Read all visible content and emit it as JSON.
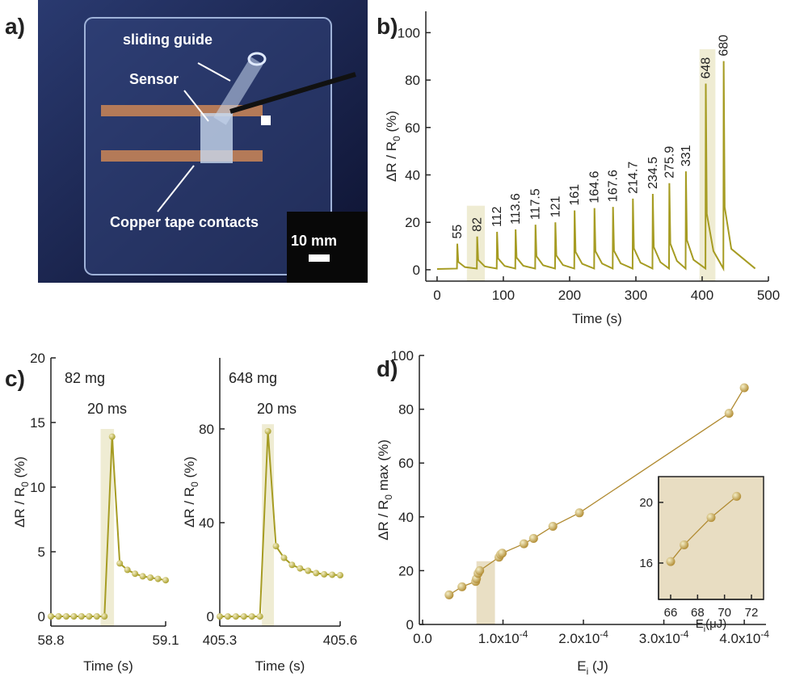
{
  "photo": {
    "panel_label": "a)",
    "labels": [
      "sliding guide",
      "Sensor",
      "Copper tape contacts",
      "10 mm"
    ]
  },
  "chart_data": [
    {
      "panel_label": "b)",
      "type": "line",
      "x_label": "Time (s)",
      "y_label": {
        "main": "ΔR / R",
        "sub": "0",
        "tail": " (%)"
      },
      "xlim": [
        -17,
        500
      ],
      "ylim": [
        -4.8,
        109
      ],
      "xticks": [
        0,
        100,
        200,
        300,
        400,
        500
      ],
      "yticks": [
        0,
        20,
        40,
        60,
        80,
        100
      ],
      "highlight_color": "#efecd3",
      "highlights": [
        {
          "x": [
            45,
            72
          ],
          "y": [
            -4.8,
            27
          ]
        },
        {
          "x": [
            396,
            420
          ],
          "y": [
            -4.8,
            93
          ]
        }
      ],
      "series": [
        {
          "color": "#a69c23",
          "marker": false,
          "x": [
            0,
            30,
            30.5,
            32,
            42,
            60,
            60.5,
            62,
            72,
            90,
            90.5,
            92,
            102,
            118,
            118.5,
            120,
            130,
            148,
            148.5,
            150,
            160,
            178,
            178.5,
            180,
            190,
            207,
            207.5,
            209,
            219,
            237,
            237.5,
            239,
            249,
            265,
            265.5,
            267,
            277,
            295,
            295.5,
            297,
            307,
            325,
            325.5,
            327,
            337,
            350,
            350.5,
            352,
            362,
            375,
            375.5,
            377,
            387,
            405,
            405.5,
            407,
            417,
            432,
            432.5,
            434,
            444,
            480
          ],
          "values": [
            0.3,
            0.5,
            11,
            3.3,
            1.1,
            0.5,
            14,
            4.2,
            1.4,
            0.5,
            16,
            4.8,
            1.6,
            0.5,
            17,
            5.1,
            1.7,
            0.5,
            19,
            5.7,
            1.9,
            0.5,
            20,
            6,
            2,
            0.5,
            25,
            7.5,
            2.5,
            0.5,
            26,
            7.8,
            2.6,
            0.5,
            26.5,
            8,
            2.7,
            0.5,
            30,
            9,
            3,
            0.5,
            32,
            9.6,
            3.2,
            0.5,
            36.5,
            11,
            3.7,
            0.5,
            41.5,
            12.5,
            4.2,
            0.5,
            78.5,
            23.6,
            7.9,
            0.5,
            88,
            26.4,
            8.8,
            0.5
          ]
        }
      ],
      "peak_labels": [
        "55",
        "82",
        "112",
        "113.6",
        "117.5",
        "121",
        "161",
        "164.6",
        "167.6",
        "214.7",
        "234.5",
        "275.9",
        "331",
        "648",
        "680"
      ]
    },
    {
      "panel_label": "c)",
      "type": "line",
      "x_label": "Time (s)",
      "y_label": {
        "main": "ΔR / R",
        "sub": "0",
        "tail": " (%)"
      },
      "xlim": [
        58.8,
        59.1
      ],
      "ylim": [
        -0.75,
        20
      ],
      "xticks": [
        58.8,
        59.1
      ],
      "yticks": [
        0,
        5,
        10,
        15,
        20
      ],
      "highlight_color": "#efecd3",
      "highlights": [
        {
          "x": [
            58.93,
            58.965
          ],
          "y": [
            -0.75,
            14.5
          ]
        }
      ],
      "annotations": [
        "82 mg",
        "20 ms"
      ],
      "series": [
        {
          "color": "#a69c23",
          "marker": true,
          "x": [
            58.8,
            58.82,
            58.84,
            58.86,
            58.88,
            58.9,
            58.92,
            58.94,
            58.96,
            58.98,
            59.0,
            59.02,
            59.04,
            59.06,
            59.08,
            59.1
          ],
          "values": [
            0,
            0,
            0,
            0,
            0,
            0,
            0,
            0,
            13.9,
            4.1,
            3.6,
            3.3,
            3.1,
            3.0,
            2.9,
            2.8
          ]
        }
      ]
    },
    {
      "type": "line",
      "x_label": "Time (s)",
      "y_label": {
        "main": "ΔR / R",
        "sub": "0",
        "tail": " (%)"
      },
      "xlim": [
        405.3,
        405.6
      ],
      "ylim": [
        -4.1,
        110.3
      ],
      "xticks": [
        405.3,
        405.6
      ],
      "yticks": [
        0,
        40,
        80
      ],
      "highlight_color": "#efecd3",
      "highlights": [
        {
          "x": [
            405.405,
            405.435
          ],
          "y": [
            -4.1,
            82
          ]
        }
      ],
      "annotations": [
        "648 mg",
        "20 ms"
      ],
      "series": [
        {
          "color": "#a69c23",
          "marker": true,
          "x": [
            405.3,
            405.32,
            405.34,
            405.36,
            405.38,
            405.4,
            405.42,
            405.44,
            405.46,
            405.48,
            405.5,
            405.52,
            405.54,
            405.56,
            405.58,
            405.6
          ],
          "values": [
            0,
            0,
            0,
            0,
            0,
            0,
            79,
            30,
            25,
            22,
            20.5,
            19.5,
            18.5,
            18,
            17.8,
            17.6
          ]
        }
      ]
    },
    {
      "panel_label": "d)",
      "type": "scatter",
      "x_label": {
        "main": "E",
        "sub": "i",
        "tail": " (J)"
      },
      "y_label": {
        "main": "ΔR / R",
        "sub": "0",
        "tail": " max (%)"
      },
      "xlim": [
        -4e-06,
        0.000427
      ],
      "ylim": [
        0,
        100
      ],
      "xticks": [
        {
          "value": 0,
          "label": "0.0"
        },
        {
          "value": 0.0001,
          "label": "1.0x10",
          "exp": "-4"
        },
        {
          "value": 0.0002,
          "label": "2.0x10",
          "exp": "-4"
        },
        {
          "value": 0.0003,
          "label": "3.0x10",
          "exp": "-4"
        },
        {
          "value": 0.0004,
          "label": "4.0x10",
          "exp": "-4"
        }
      ],
      "yticks": [
        0,
        20,
        40,
        60,
        80,
        100
      ],
      "highlight_color": "#e9dfc4",
      "highlights": [
        {
          "x": [
            6.7e-05,
            9e-05
          ],
          "y": [
            0,
            23.5
          ]
        }
      ],
      "series": [
        {
          "color": "#b08a30",
          "marker": true,
          "x": [
            3.3e-05,
            4.9e-05,
            6.6e-05,
            6.7e-05,
            6.9e-05,
            7.1e-05,
            9.5e-05,
            9.7e-05,
            9.9e-05,
            0.000126,
            0.000138,
            0.000162,
            0.000195,
            0.000381,
            0.0004
          ],
          "values": [
            11,
            14,
            16,
            17,
            19,
            20,
            25,
            26,
            26.5,
            30,
            32,
            36.5,
            41.5,
            78.5,
            88
          ]
        }
      ]
    },
    {
      "type": "scatter",
      "x_label": {
        "main": "E",
        "sub": "i",
        "tail": "(μJ)"
      },
      "background": "#e8ddc2",
      "xlim": [
        65.1,
        72.9
      ],
      "ylim": [
        13.6,
        21.7
      ],
      "xticks": [
        66,
        68,
        70,
        72
      ],
      "yticks": [
        16,
        20
      ],
      "series": [
        {
          "color": "#b08a30",
          "marker": true,
          "x": [
            66,
            67,
            69,
            70.9
          ],
          "values": [
            16.1,
            17.2,
            19.0,
            20.4
          ]
        }
      ]
    }
  ]
}
